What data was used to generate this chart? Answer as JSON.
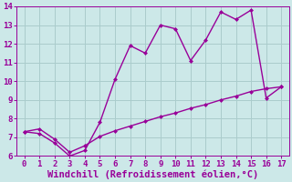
{
  "xlabel": "Windchill (Refroidissement éolien,°C)",
  "line1_x": [
    0,
    1,
    2,
    3,
    4,
    5,
    6,
    7,
    8,
    9,
    10,
    11,
    12,
    13,
    14,
    15,
    16,
    17
  ],
  "line1_y": [
    7.3,
    7.2,
    6.7,
    6.0,
    6.3,
    7.8,
    10.1,
    11.9,
    11.5,
    13.0,
    12.8,
    11.1,
    12.2,
    13.7,
    13.3,
    13.8,
    9.1,
    9.7
  ],
  "line2_x": [
    0,
    1,
    2,
    3,
    4,
    5,
    6,
    7,
    8,
    9,
    10,
    11,
    12,
    13,
    14,
    15,
    16,
    17
  ],
  "line2_y": [
    7.3,
    7.45,
    6.9,
    6.2,
    6.55,
    7.05,
    7.35,
    7.6,
    7.85,
    8.1,
    8.3,
    8.55,
    8.75,
    9.0,
    9.2,
    9.45,
    9.6,
    9.7
  ],
  "line_color": "#990099",
  "bg_color": "#cce8e8",
  "grid_color": "#aacccc",
  "xlim": [
    -0.5,
    17.5
  ],
  "ylim": [
    6,
    14
  ],
  "xticks": [
    0,
    1,
    2,
    3,
    4,
    5,
    6,
    7,
    8,
    9,
    10,
    11,
    12,
    13,
    14,
    15,
    16,
    17
  ],
  "yticks": [
    6,
    7,
    8,
    9,
    10,
    11,
    12,
    13,
    14
  ],
  "marker": "D",
  "markersize": 2.5,
  "linewidth": 1.0,
  "tick_fontsize": 6.5,
  "xlabel_fontsize": 7.5
}
